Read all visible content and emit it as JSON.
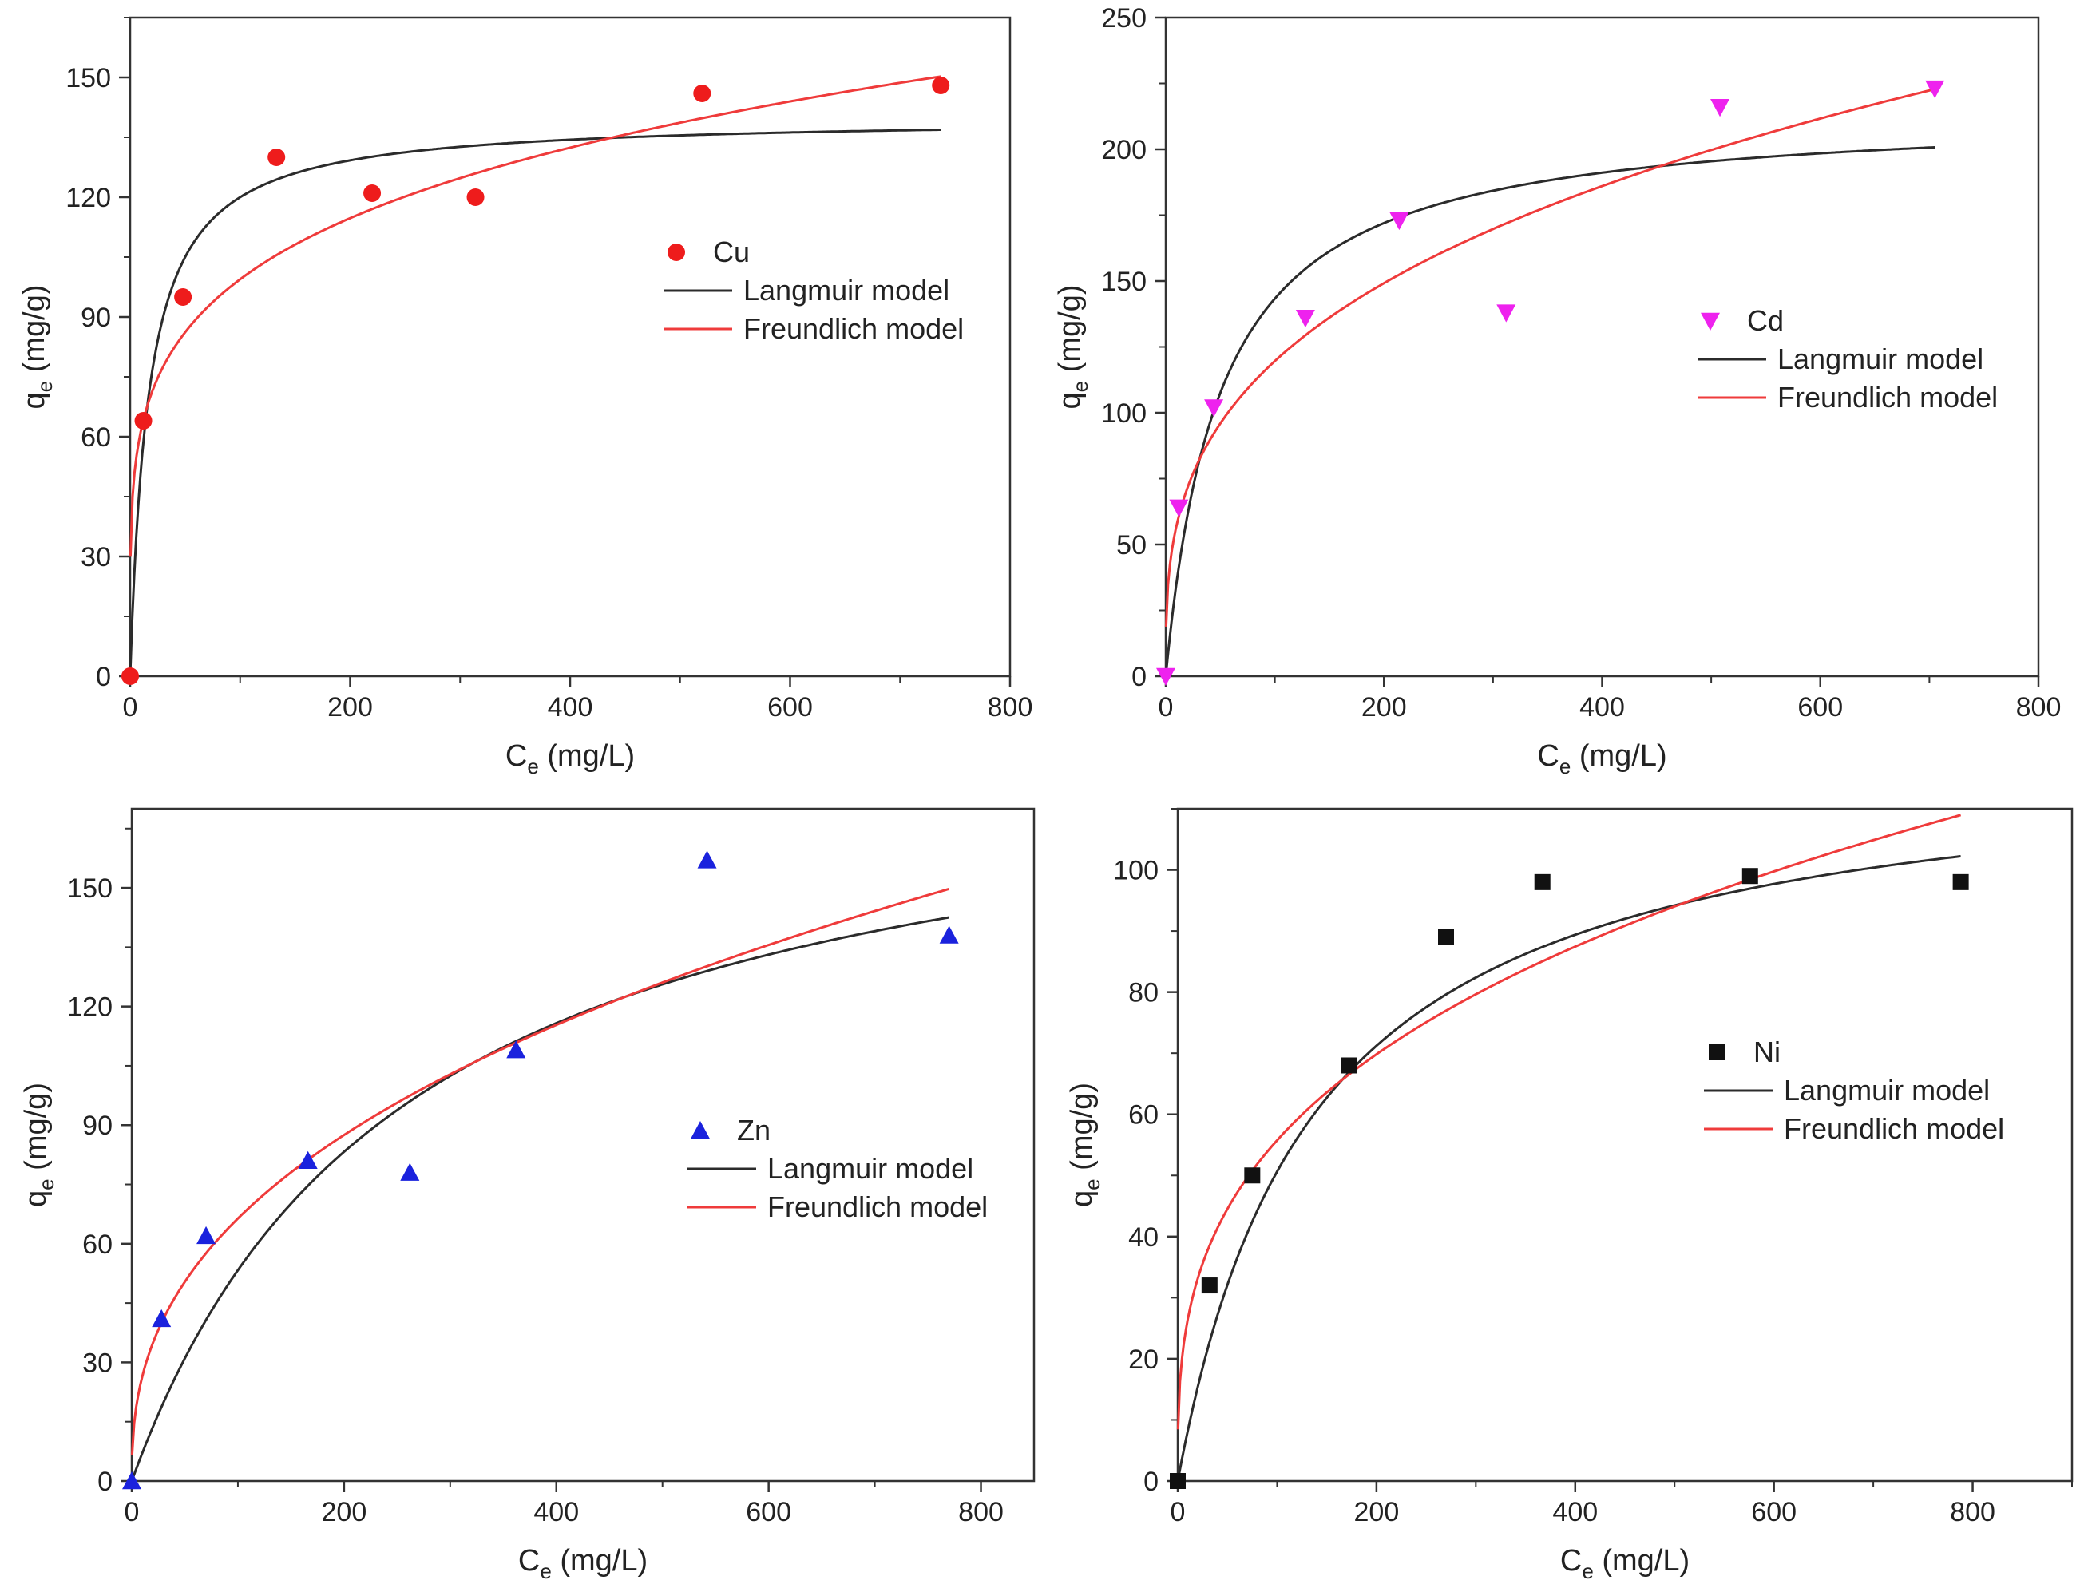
{
  "figure": {
    "colors": {
      "axis": "#333333",
      "langmuir": "#2b2b2b",
      "freundlich": "#ef3b3b",
      "cu": "#ee1c1c",
      "cd": "#ee22ee",
      "zn": "#1a22dd",
      "ni": "#111111"
    }
  },
  "chart_data": [
    {
      "id": "cu",
      "type": "scatter",
      "xlabel": {
        "main": "C",
        "sub": "e",
        "unit": " (mg/L)"
      },
      "ylabel": {
        "main": "q",
        "sub": "e",
        "unit": " (mg/g)"
      },
      "xlim": [
        0,
        800
      ],
      "ylim": [
        0,
        165
      ],
      "xticks": [
        0,
        200,
        400,
        600,
        800
      ],
      "yticks": [
        0,
        30,
        60,
        90,
        120,
        150
      ],
      "marker": "circle",
      "marker_color": "#ee1c1c",
      "series": [
        {
          "name": "Cu",
          "kind": "points",
          "x": [
            0,
            12,
            48,
            133,
            220,
            314,
            520,
            737
          ],
          "y": [
            0,
            64,
            95,
            130,
            121,
            120,
            146,
            148
          ]
        },
        {
          "name": "Langmuir model",
          "kind": "langmuir",
          "qmax": 140,
          "KL": 0.06,
          "xmax": 737
        },
        {
          "name": "Freundlich model",
          "kind": "freundlich",
          "KF": 38.4,
          "n": 4.84,
          "xmin": 0.3,
          "xmax": 737
        }
      ],
      "legend": {
        "placement": "center-right",
        "labels": [
          "Cu",
          "Langmuir model",
          "Freundlich model"
        ]
      }
    },
    {
      "id": "cd",
      "type": "scatter",
      "xlabel": {
        "main": "C",
        "sub": "e",
        "unit": " (mg/L)"
      },
      "ylabel": {
        "main": "q",
        "sub": "e",
        "unit": " (mg/g)"
      },
      "xlim": [
        0,
        800
      ],
      "ylim": [
        0,
        250
      ],
      "xticks": [
        0,
        200,
        400,
        600,
        800
      ],
      "yticks": [
        0,
        50,
        100,
        150,
        200,
        250
      ],
      "marker": "triangle-down",
      "marker_color": "#ee22ee",
      "series": [
        {
          "name": "Cd",
          "kind": "points",
          "x": [
            0,
            12,
            44,
            128,
            214,
            312,
            508,
            705
          ],
          "y": [
            0,
            64,
            102,
            136,
            173,
            138,
            216,
            223
          ]
        },
        {
          "name": "Langmuir model",
          "kind": "langmuir",
          "qmax": 215,
          "KL": 0.02,
          "xmax": 705
        },
        {
          "name": "Freundlich model",
          "kind": "freundlich",
          "KF": 27.6,
          "n": 3.14,
          "xmin": 0.3,
          "xmax": 705
        }
      ],
      "legend": {
        "placement": "center-right",
        "labels": [
          "Cd",
          "Langmuir model",
          "Freundlich model"
        ]
      }
    },
    {
      "id": "zn",
      "type": "scatter",
      "xlabel": {
        "main": "C",
        "sub": "e",
        "unit": " (mg/L)"
      },
      "ylabel": {
        "main": "q",
        "sub": "e",
        "unit": " (mg/g)"
      },
      "xlim": [
        0,
        850
      ],
      "ylim": [
        0,
        170
      ],
      "xticks": [
        0,
        200,
        400,
        600,
        800
      ],
      "yticks": [
        0,
        30,
        60,
        90,
        120,
        150
      ],
      "marker": "triangle-up",
      "marker_color": "#1a22dd",
      "series": [
        {
          "name": "Zn",
          "kind": "points",
          "x": [
            0,
            28,
            70,
            166,
            262,
            362,
            542,
            770
          ],
          "y": [
            0,
            41,
            62,
            81,
            78,
            109,
            157,
            138
          ]
        },
        {
          "name": "Langmuir model",
          "kind": "langmuir",
          "qmax": 190,
          "KL": 0.0039,
          "xmax": 770
        },
        {
          "name": "Freundlich model",
          "kind": "freundlich",
          "KF": 10.6,
          "n": 2.51,
          "xmin": 0.3,
          "xmax": 770
        }
      ],
      "legend": {
        "placement": "center-right",
        "labels": [
          "Zn",
          "Langmuir model",
          "Freundlich model"
        ]
      }
    },
    {
      "id": "ni",
      "type": "scatter",
      "xlabel": {
        "main": "C",
        "sub": "e",
        "unit": " (mg/L)"
      },
      "ylabel": {
        "main": "q",
        "sub": "e",
        "unit": " (mg/g)"
      },
      "xlim": [
        0,
        900
      ],
      "ylim": [
        0,
        110
      ],
      "xticks": [
        0,
        200,
        400,
        600,
        800
      ],
      "yticks": [
        0,
        20,
        40,
        60,
        80,
        100
      ],
      "marker": "square",
      "marker_color": "#111111",
      "series": [
        {
          "name": "Ni",
          "kind": "points",
          "x": [
            0,
            32,
            75,
            172,
            270,
            367,
            576,
            788
          ],
          "y": [
            0,
            32,
            50,
            68,
            89,
            98,
            99,
            98
          ]
        },
        {
          "name": "Langmuir model",
          "kind": "langmuir",
          "qmax": 120,
          "KL": 0.0073,
          "xmax": 788
        },
        {
          "name": "Freundlich model",
          "kind": "freundlich",
          "KF": 12.5,
          "n": 3.08,
          "xmin": 0.3,
          "xmax": 788
        }
      ],
      "legend": {
        "placement": "center-right",
        "labels": [
          "Ni",
          "Langmuir model",
          "Freundlich model"
        ]
      }
    }
  ]
}
